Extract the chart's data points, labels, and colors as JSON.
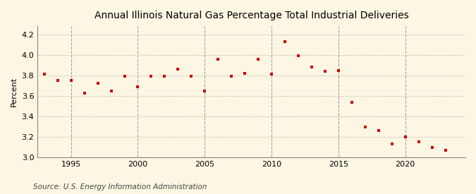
{
  "title": "Annual Illinois Natural Gas Percentage Total Industrial Deliveries",
  "ylabel": "Percent",
  "source": "Source: U.S. Energy Information Administration",
  "background_color": "#fdf6e3",
  "plot_background_color": "#fdf6e3",
  "marker_color": "#cc0000",
  "marker": "s",
  "markersize": 3.5,
  "xlim": [
    1992.5,
    2024.5
  ],
  "ylim": [
    3.0,
    4.28
  ],
  "yticks": [
    3.0,
    3.2,
    3.4,
    3.6,
    3.8,
    4.0,
    4.2
  ],
  "xticks": [
    1995,
    2000,
    2005,
    2010,
    2015,
    2020
  ],
  "hgrid_color": "#aaaaaa",
  "vgrid_color": "#999999",
  "years": [
    1993,
    1994,
    1995,
    1996,
    1997,
    1998,
    1999,
    2000,
    2001,
    2002,
    2003,
    2004,
    2005,
    2006,
    2007,
    2008,
    2009,
    2010,
    2011,
    2012,
    2013,
    2014,
    2015,
    2016,
    2017,
    2018,
    2019,
    2020,
    2021,
    2022,
    2023
  ],
  "values": [
    3.81,
    3.75,
    3.75,
    3.63,
    3.72,
    3.65,
    3.79,
    3.69,
    3.79,
    3.79,
    3.86,
    3.79,
    3.65,
    3.96,
    3.79,
    3.82,
    3.96,
    3.81,
    4.13,
    3.99,
    3.88,
    3.84,
    3.85,
    3.54,
    3.3,
    3.26,
    3.13,
    3.2,
    3.15,
    3.1,
    3.07
  ]
}
